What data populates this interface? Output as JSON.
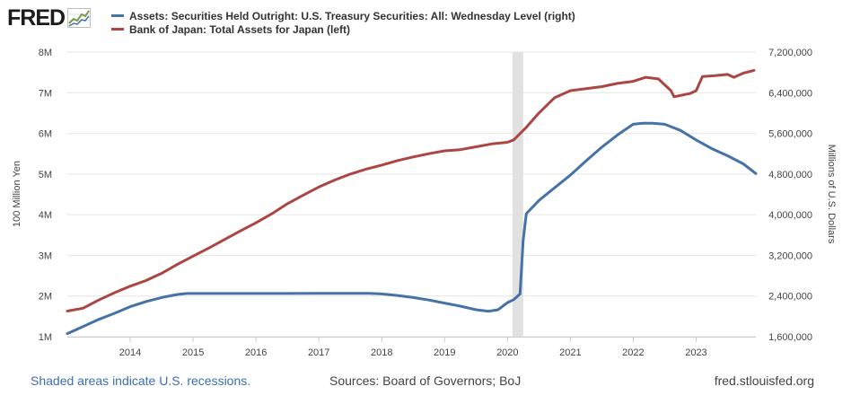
{
  "logo": {
    "text": "FRED",
    "icon": "fred-chart-icon"
  },
  "legend": [
    {
      "label": "Assets: Securities Held Outright: U.S. Treasury Securities: All: Wednesday Level (right)",
      "color": "#4572a7"
    },
    {
      "label": "Bank of Japan: Total Assets for Japan (left)",
      "color": "#aa4643"
    }
  ],
  "footer": {
    "recession_note": "Shaded areas indicate U.S. recessions.",
    "sources": "Sources: Board of Governors; BoJ",
    "site": "fred.stlouisfed.org"
  },
  "chart_data": {
    "type": "line",
    "x_range": [
      2013.0,
      2023.95
    ],
    "x_ticks": [
      2014,
      2015,
      2016,
      2017,
      2018,
      2019,
      2020,
      2021,
      2022,
      2023
    ],
    "x_tick_labels": [
      "2014",
      "2015",
      "2016",
      "2017",
      "2018",
      "2019",
      "2020",
      "2021",
      "2022",
      "2023"
    ],
    "recession": {
      "start": 2020.08,
      "end": 2020.25
    },
    "left_axis": {
      "label": "100 Million Yen",
      "min": 1000000,
      "max": 8000000,
      "ticks": [
        1000000,
        2000000,
        3000000,
        4000000,
        5000000,
        6000000,
        7000000,
        8000000
      ],
      "tick_labels": [
        "1M",
        "2M",
        "3M",
        "4M",
        "5M",
        "6M",
        "7M",
        "8M"
      ]
    },
    "right_axis": {
      "label": "Millions of U.S. Dollars",
      "min": 1600000,
      "max": 7200000,
      "ticks": [
        1600000,
        2400000,
        3200000,
        4000000,
        4800000,
        5600000,
        6400000,
        7200000
      ],
      "tick_labels": [
        "1,600,000",
        "2,400,000",
        "3,200,000",
        "4,000,000",
        "4,800,000",
        "5,600,000",
        "6,400,000",
        "7,200,000"
      ]
    },
    "series": [
      {
        "name": "Bank of Japan: Total Assets for Japan (left)",
        "axis": "left",
        "color": "#aa4643",
        "points": [
          [
            2013.0,
            1630000
          ],
          [
            2013.25,
            1700000
          ],
          [
            2013.5,
            1900000
          ],
          [
            2013.75,
            2080000
          ],
          [
            2014.0,
            2240000
          ],
          [
            2014.25,
            2380000
          ],
          [
            2014.5,
            2560000
          ],
          [
            2014.75,
            2780000
          ],
          [
            2015.0,
            2980000
          ],
          [
            2015.25,
            3180000
          ],
          [
            2015.5,
            3390000
          ],
          [
            2015.75,
            3600000
          ],
          [
            2016.0,
            3800000
          ],
          [
            2016.25,
            4020000
          ],
          [
            2016.5,
            4270000
          ],
          [
            2016.75,
            4480000
          ],
          [
            2017.0,
            4680000
          ],
          [
            2017.25,
            4850000
          ],
          [
            2017.5,
            5000000
          ],
          [
            2017.75,
            5120000
          ],
          [
            2018.0,
            5220000
          ],
          [
            2018.25,
            5330000
          ],
          [
            2018.5,
            5420000
          ],
          [
            2018.75,
            5500000
          ],
          [
            2019.0,
            5570000
          ],
          [
            2019.25,
            5600000
          ],
          [
            2019.5,
            5670000
          ],
          [
            2019.75,
            5740000
          ],
          [
            2020.0,
            5780000
          ],
          [
            2020.1,
            5840000
          ],
          [
            2020.3,
            6150000
          ],
          [
            2020.5,
            6500000
          ],
          [
            2020.75,
            6880000
          ],
          [
            2021.0,
            7050000
          ],
          [
            2021.25,
            7100000
          ],
          [
            2021.5,
            7150000
          ],
          [
            2021.75,
            7230000
          ],
          [
            2022.0,
            7280000
          ],
          [
            2022.2,
            7380000
          ],
          [
            2022.4,
            7340000
          ],
          [
            2022.6,
            7050000
          ],
          [
            2022.65,
            6900000
          ],
          [
            2022.9,
            6980000
          ],
          [
            2023.0,
            7050000
          ],
          [
            2023.1,
            7400000
          ],
          [
            2023.3,
            7420000
          ],
          [
            2023.5,
            7450000
          ],
          [
            2023.6,
            7380000
          ],
          [
            2023.75,
            7480000
          ],
          [
            2023.85,
            7520000
          ],
          [
            2023.92,
            7550000
          ]
        ]
      },
      {
        "name": "Assets: Securities Held Outright: U.S. Treasury Securities: All: Wednesday Level (right)",
        "axis": "right",
        "color": "#4572a7",
        "points": [
          [
            2013.0,
            1660000
          ],
          [
            2013.25,
            1800000
          ],
          [
            2013.5,
            1940000
          ],
          [
            2013.75,
            2060000
          ],
          [
            2014.0,
            2190000
          ],
          [
            2014.25,
            2290000
          ],
          [
            2014.5,
            2370000
          ],
          [
            2014.75,
            2430000
          ],
          [
            2014.9,
            2450000
          ],
          [
            2015.5,
            2450000
          ],
          [
            2016.0,
            2450000
          ],
          [
            2016.5,
            2450000
          ],
          [
            2017.0,
            2454000
          ],
          [
            2017.5,
            2454000
          ],
          [
            2017.8,
            2454000
          ],
          [
            2018.0,
            2440000
          ],
          [
            2018.25,
            2410000
          ],
          [
            2018.5,
            2370000
          ],
          [
            2018.75,
            2320000
          ],
          [
            2019.0,
            2260000
          ],
          [
            2019.25,
            2200000
          ],
          [
            2019.5,
            2130000
          ],
          [
            2019.7,
            2100000
          ],
          [
            2019.85,
            2130000
          ],
          [
            2020.0,
            2270000
          ],
          [
            2020.1,
            2330000
          ],
          [
            2020.2,
            2440000
          ],
          [
            2020.25,
            3500000
          ],
          [
            2020.3,
            4020000
          ],
          [
            2020.5,
            4280000
          ],
          [
            2020.75,
            4530000
          ],
          [
            2021.0,
            4780000
          ],
          [
            2021.25,
            5060000
          ],
          [
            2021.5,
            5330000
          ],
          [
            2021.75,
            5570000
          ],
          [
            2022.0,
            5780000
          ],
          [
            2022.15,
            5800000
          ],
          [
            2022.3,
            5800000
          ],
          [
            2022.5,
            5780000
          ],
          [
            2022.75,
            5660000
          ],
          [
            2023.0,
            5470000
          ],
          [
            2023.25,
            5300000
          ],
          [
            2023.5,
            5160000
          ],
          [
            2023.75,
            5000000
          ],
          [
            2023.95,
            4810000
          ]
        ]
      }
    ]
  }
}
